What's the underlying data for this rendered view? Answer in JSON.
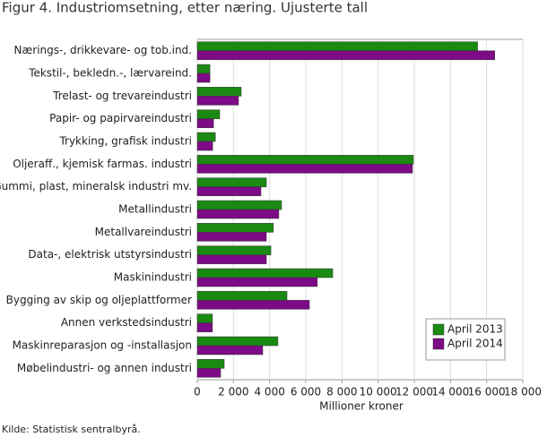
{
  "chart_data": {
    "type": "hbar",
    "title": "Figur 4. Industriomsetning, etter næring. Ujusterte tall",
    "x_label": "Millioner kroner",
    "source": "Kilde: Statistisk sentralbyrå.",
    "categories": [
      "Nærings-, drikkevare- og tob.ind.",
      "Tekstil-, bekledn.-, lærvareind.",
      "Trelast- og trevareindustri",
      "Papir- og papirvareindustri",
      "Trykking, grafisk industri",
      "Oljeraff., kjemisk farmas. industri",
      "Gummi, plast, mineralsk industri mv.",
      "Metallindustri",
      "Metallvareindustri",
      "Data-, elektrisk utstyrsindustri",
      "Maskinindustri",
      "Bygging av skip og oljeplattformer",
      "Annen verkstedsindustri",
      "Maskinreparasjon og -installasjon",
      "Møbelindustri- og annen industri"
    ],
    "series": [
      {
        "name": "April 2013",
        "color": "#1a8a12",
        "values": [
          15500,
          700,
          2430,
          1240,
          1000,
          11950,
          3820,
          4660,
          4210,
          4070,
          7490,
          4960,
          840,
          4460,
          1490
        ]
      },
      {
        "name": "April 2014",
        "color": "#7d0a86",
        "values": [
          16450,
          700,
          2280,
          900,
          850,
          11900,
          3520,
          4510,
          3820,
          3820,
          6640,
          6200,
          840,
          3620,
          1290
        ]
      }
    ],
    "xlim": [
      0,
      18000
    ],
    "xticks": [
      0,
      {
        "value": 2000,
        "label": "2 000"
      },
      {
        "value": 4000,
        "label": "4 000"
      },
      {
        "value": 6000,
        "label": "6 000"
      },
      {
        "value": 8000,
        "label": "8 000"
      },
      {
        "value": 10000,
        "label": "10 000"
      },
      {
        "value": 12000,
        "label": "12 000"
      },
      {
        "value": 14000,
        "label": "14 000"
      },
      {
        "value": 16000,
        "label": "16 000"
      },
      {
        "value": 18000,
        "label": "18 000"
      }
    ],
    "grid": true,
    "legend": "lower-right"
  }
}
